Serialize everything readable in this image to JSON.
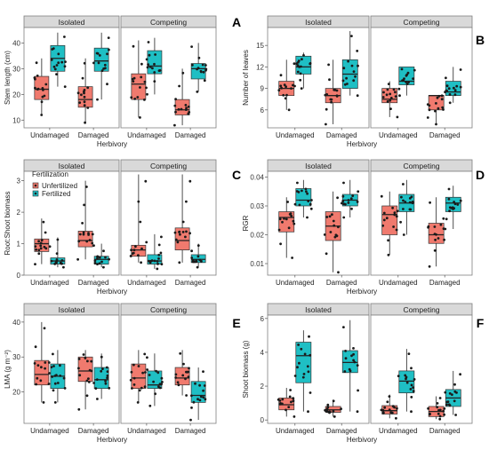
{
  "colors": {
    "unfertilized": "#F07A6E",
    "fertilized": "#1FBFC4",
    "strip_fill": "#D9D9D9",
    "axis": "#555555",
    "point": "#1a1a1a"
  },
  "legend": {
    "title": "Fertilization",
    "items": [
      "Unfertilized",
      "Fertilized"
    ]
  },
  "chart_data": [
    {
      "panel_label": "A",
      "type": "box",
      "ylabel": "Stem length (cm)",
      "xlabel": "Herbivory",
      "facets": [
        "Isolated",
        "Competing"
      ],
      "categories": [
        "Undamaged",
        "Damaged"
      ],
      "series_names": [
        "Unfertilized",
        "Fertilized"
      ],
      "ylim": [
        7,
        46
      ],
      "yticks": [
        10,
        20,
        30,
        40
      ],
      "boxes": [
        {
          "facet": "Isolated",
          "category": "Undamaged",
          "series": "Unfertilized",
          "q1": 18,
          "median": 22,
          "q3": 27,
          "whisker_low": 12,
          "whisker_high": 34
        },
        {
          "facet": "Isolated",
          "category": "Undamaged",
          "series": "Fertilized",
          "q1": 29,
          "median": 34,
          "q3": 39,
          "whisker_low": 23,
          "whisker_high": 44
        },
        {
          "facet": "Isolated",
          "category": "Damaged",
          "series": "Unfertilized",
          "q1": 15,
          "median": 18,
          "q3": 23,
          "whisker_low": 9,
          "whisker_high": 34
        },
        {
          "facet": "Isolated",
          "category": "Damaged",
          "series": "Fertilized",
          "q1": 29,
          "median": 33,
          "q3": 38,
          "whisker_low": 18,
          "whisker_high": 44
        },
        {
          "facet": "Competing",
          "category": "Undamaged",
          "series": "Unfertilized",
          "q1": 18,
          "median": 24,
          "q3": 28,
          "whisker_low": 11,
          "whisker_high": 41
        },
        {
          "facet": "Competing",
          "category": "Undamaged",
          "series": "Fertilized",
          "q1": 28,
          "median": 31,
          "q3": 37,
          "whisker_low": 20,
          "whisker_high": 42
        },
        {
          "facet": "Competing",
          "category": "Damaged",
          "series": "Unfertilized",
          "q1": 12,
          "median": 14,
          "q3": 18,
          "whisker_low": 8,
          "whisker_high": 30
        },
        {
          "facet": "Competing",
          "category": "Damaged",
          "series": "Fertilized",
          "q1": 26,
          "median": 30,
          "q3": 32,
          "whisker_low": 21,
          "whisker_high": 40
        }
      ]
    },
    {
      "panel_label": "B",
      "type": "box",
      "ylabel": "Number of leaves",
      "xlabel": "Herbivory",
      "facets": [
        "Isolated",
        "Competing"
      ],
      "categories": [
        "Undamaged",
        "Damaged"
      ],
      "series_names": [
        "Unfertilized",
        "Fertilized"
      ],
      "ylim": [
        3.5,
        17.5
      ],
      "yticks": [
        6,
        9,
        12,
        15
      ],
      "boxes": [
        {
          "facet": "Isolated",
          "category": "Undamaged",
          "series": "Unfertilized",
          "q1": 8,
          "median": 9,
          "q3": 10,
          "whisker_low": 6,
          "whisker_high": 13
        },
        {
          "facet": "Isolated",
          "category": "Undamaged",
          "series": "Fertilized",
          "q1": 11,
          "median": 12,
          "q3": 13.5,
          "whisker_low": 9,
          "whisker_high": 14
        },
        {
          "facet": "Isolated",
          "category": "Damaged",
          "series": "Unfertilized",
          "q1": 7,
          "median": 8,
          "q3": 9,
          "whisker_low": 4,
          "whisker_high": 13
        },
        {
          "facet": "Isolated",
          "category": "Damaged",
          "series": "Fertilized",
          "q1": 9,
          "median": 11,
          "q3": 13,
          "whisker_low": 8,
          "whisker_high": 17
        },
        {
          "facet": "Competing",
          "category": "Undamaged",
          "series": "Unfertilized",
          "q1": 7,
          "median": 7.5,
          "q3": 9,
          "whisker_low": 5,
          "whisker_high": 10
        },
        {
          "facet": "Competing",
          "category": "Undamaged",
          "series": "Fertilized",
          "q1": 9.5,
          "median": 10,
          "q3": 12,
          "whisker_low": 8,
          "whisker_high": 12
        },
        {
          "facet": "Competing",
          "category": "Damaged",
          "series": "Unfertilized",
          "q1": 6,
          "median": 8,
          "q3": 8,
          "whisker_low": 4,
          "whisker_high": 8
        },
        {
          "facet": "Competing",
          "category": "Damaged",
          "series": "Fertilized",
          "q1": 8,
          "median": 8.5,
          "q3": 10,
          "whisker_low": 7,
          "whisker_high": 12
        }
      ]
    },
    {
      "panel_label": "C",
      "type": "box",
      "ylabel": "Root:Shoot biomass",
      "xlabel": "Herbivory",
      "facets": [
        "Isolated",
        "Competing"
      ],
      "categories": [
        "Undamaged",
        "Damaged"
      ],
      "series_names": [
        "Unfertilized",
        "Fertilized"
      ],
      "ylim": [
        0,
        3.3
      ],
      "yticks": [
        0,
        1,
        2,
        3
      ],
      "boxes": [
        {
          "facet": "Isolated",
          "category": "Undamaged",
          "series": "Unfertilized",
          "q1": 0.75,
          "median": 1.0,
          "q3": 1.15,
          "whisker_low": 0.35,
          "whisker_high": 1.8
        },
        {
          "facet": "Isolated",
          "category": "Undamaged",
          "series": "Fertilized",
          "q1": 0.35,
          "median": 0.45,
          "q3": 0.55,
          "whisker_low": 0.25,
          "whisker_high": 1.2
        },
        {
          "facet": "Isolated",
          "category": "Damaged",
          "series": "Unfertilized",
          "q1": 0.9,
          "median": 1.1,
          "q3": 1.4,
          "whisker_low": 0.5,
          "whisker_high": 3.0
        },
        {
          "facet": "Isolated",
          "category": "Damaged",
          "series": "Fertilized",
          "q1": 0.35,
          "median": 0.5,
          "q3": 0.6,
          "whisker_low": 0.25,
          "whisker_high": 1.0
        },
        {
          "facet": "Competing",
          "category": "Undamaged",
          "series": "Unfertilized",
          "q1": 0.6,
          "median": 0.8,
          "q3": 0.95,
          "whisker_low": 0.4,
          "whisker_high": 3.2
        },
        {
          "facet": "Competing",
          "category": "Undamaged",
          "series": "Fertilized",
          "q1": 0.35,
          "median": 0.45,
          "q3": 0.65,
          "whisker_low": 0.2,
          "whisker_high": 1.3
        },
        {
          "facet": "Competing",
          "category": "Damaged",
          "series": "Unfertilized",
          "q1": 0.8,
          "median": 1.1,
          "q3": 1.5,
          "whisker_low": 0.4,
          "whisker_high": 3.2
        },
        {
          "facet": "Competing",
          "category": "Damaged",
          "series": "Fertilized",
          "q1": 0.4,
          "median": 0.5,
          "q3": 0.65,
          "whisker_low": 0.25,
          "whisker_high": 1.0
        }
      ]
    },
    {
      "panel_label": "D",
      "type": "box",
      "ylabel": "RGR",
      "xlabel": "Herbivory",
      "facets": [
        "Isolated",
        "Competing"
      ],
      "categories": [
        "Undamaged",
        "Damaged"
      ],
      "series_names": [
        "Unfertilized",
        "Fertilized"
      ],
      "ylim": [
        0.006,
        0.042
      ],
      "yticks": [
        0.01,
        0.02,
        0.03,
        0.04
      ],
      "tick_labels": [
        "0.01",
        "0.02",
        "0.03",
        "0.04"
      ],
      "boxes": [
        {
          "facet": "Isolated",
          "category": "Undamaged",
          "series": "Unfertilized",
          "q1": 0.021,
          "median": 0.026,
          "q3": 0.028,
          "whisker_low": 0.012,
          "whisker_high": 0.033
        },
        {
          "facet": "Isolated",
          "category": "Undamaged",
          "series": "Fertilized",
          "q1": 0.03,
          "median": 0.032,
          "q3": 0.036,
          "whisker_low": 0.026,
          "whisker_high": 0.039
        },
        {
          "facet": "Isolated",
          "category": "Damaged",
          "series": "Unfertilized",
          "q1": 0.018,
          "median": 0.023,
          "q3": 0.028,
          "whisker_low": 0.007,
          "whisker_high": 0.035
        },
        {
          "facet": "Isolated",
          "category": "Damaged",
          "series": "Fertilized",
          "q1": 0.03,
          "median": 0.032,
          "q3": 0.034,
          "whisker_low": 0.026,
          "whisker_high": 0.039
        },
        {
          "facet": "Competing",
          "category": "Undamaged",
          "series": "Unfertilized",
          "q1": 0.02,
          "median": 0.027,
          "q3": 0.03,
          "whisker_low": 0.013,
          "whisker_high": 0.035
        },
        {
          "facet": "Competing",
          "category": "Undamaged",
          "series": "Fertilized",
          "q1": 0.028,
          "median": 0.031,
          "q3": 0.034,
          "whisker_low": 0.02,
          "whisker_high": 0.039
        },
        {
          "facet": "Competing",
          "category": "Damaged",
          "series": "Unfertilized",
          "q1": 0.017,
          "median": 0.02,
          "q3": 0.024,
          "whisker_low": 0.009,
          "whisker_high": 0.033
        },
        {
          "facet": "Competing",
          "category": "Damaged",
          "series": "Fertilized",
          "q1": 0.028,
          "median": 0.031,
          "q3": 0.033,
          "whisker_low": 0.022,
          "whisker_high": 0.037
        }
      ]
    },
    {
      "panel_label": "E",
      "type": "box",
      "ylabel": "LMA (g m⁻²)",
      "xlabel": "Herbivory",
      "facets": [
        "Isolated",
        "Competing"
      ],
      "categories": [
        "Undamaged",
        "Damaged"
      ],
      "series_names": [
        "Unfertilized",
        "Fertilized"
      ],
      "ylim": [
        11,
        42
      ],
      "yticks": [
        20,
        30,
        40
      ],
      "boxes": [
        {
          "facet": "Isolated",
          "category": "Undamaged",
          "series": "Unfertilized",
          "q1": 22,
          "median": 25,
          "q3": 29,
          "whisker_low": 17,
          "whisker_high": 40
        },
        {
          "facet": "Isolated",
          "category": "Undamaged",
          "series": "Fertilized",
          "q1": 21,
          "median": 24.5,
          "q3": 28,
          "whisker_low": 17,
          "whisker_high": 32
        },
        {
          "facet": "Isolated",
          "category": "Damaged",
          "series": "Unfertilized",
          "q1": 23,
          "median": 26,
          "q3": 30,
          "whisker_low": 15,
          "whisker_high": 32
        },
        {
          "facet": "Isolated",
          "category": "Damaged",
          "series": "Fertilized",
          "q1": 21,
          "median": 23.5,
          "q3": 27,
          "whisker_low": 18,
          "whisker_high": 31
        },
        {
          "facet": "Competing",
          "category": "Undamaged",
          "series": "Unfertilized",
          "q1": 21,
          "median": 24,
          "q3": 28,
          "whisker_low": 17,
          "whisker_high": 32
        },
        {
          "facet": "Competing",
          "category": "Undamaged",
          "series": "Fertilized",
          "q1": 21,
          "median": 22,
          "q3": 26,
          "whisker_low": 16,
          "whisker_high": 31
        },
        {
          "facet": "Competing",
          "category": "Damaged",
          "series": "Unfertilized",
          "q1": 22,
          "median": 24,
          "q3": 27,
          "whisker_low": 19,
          "whisker_high": 32
        },
        {
          "facet": "Competing",
          "category": "Damaged",
          "series": "Fertilized",
          "q1": 17,
          "median": 19,
          "q3": 23,
          "whisker_low": 12,
          "whisker_high": 27
        }
      ]
    },
    {
      "panel_label": "F",
      "type": "box",
      "ylabel": "Shoot biomass (g)",
      "xlabel": "Herbivory",
      "facets": [
        "Isolated",
        "Competing"
      ],
      "categories": [
        "Undamaged",
        "Damaged"
      ],
      "series_names": [
        "Unfertilized",
        "Fertilized"
      ],
      "ylim": [
        -0.2,
        6.2
      ],
      "yticks": [
        0,
        2,
        4,
        6
      ],
      "boxes": [
        {
          "facet": "Isolated",
          "category": "Undamaged",
          "series": "Unfertilized",
          "q1": 0.6,
          "median": 0.9,
          "q3": 1.3,
          "whisker_low": 0.2,
          "whisker_high": 1.9
        },
        {
          "facet": "Isolated",
          "category": "Undamaged",
          "series": "Fertilized",
          "q1": 2.2,
          "median": 3.8,
          "q3": 4.6,
          "whisker_low": 0.5,
          "whisker_high": 5.3
        },
        {
          "facet": "Isolated",
          "category": "Damaged",
          "series": "Unfertilized",
          "q1": 0.45,
          "median": 0.6,
          "q3": 0.8,
          "whisker_low": 0.2,
          "whisker_high": 1.2
        },
        {
          "facet": "Isolated",
          "category": "Damaged",
          "series": "Fertilized",
          "q1": 2.8,
          "median": 3.4,
          "q3": 4.1,
          "whisker_low": 0.5,
          "whisker_high": 5.9
        },
        {
          "facet": "Competing",
          "category": "Undamaged",
          "series": "Unfertilized",
          "q1": 0.35,
          "median": 0.55,
          "q3": 0.85,
          "whisker_low": 0.1,
          "whisker_high": 1.5
        },
        {
          "facet": "Competing",
          "category": "Undamaged",
          "series": "Fertilized",
          "q1": 1.6,
          "median": 2.3,
          "q3": 2.9,
          "whisker_low": 0.5,
          "whisker_high": 4.2
        },
        {
          "facet": "Competing",
          "category": "Damaged",
          "series": "Unfertilized",
          "q1": 0.2,
          "median": 0.5,
          "q3": 0.8,
          "whisker_low": 0.05,
          "whisker_high": 1.4
        },
        {
          "facet": "Competing",
          "category": "Damaged",
          "series": "Fertilized",
          "q1": 0.8,
          "median": 1.3,
          "q3": 1.8,
          "whisker_low": 0.3,
          "whisker_high": 2.9
        }
      ]
    }
  ]
}
